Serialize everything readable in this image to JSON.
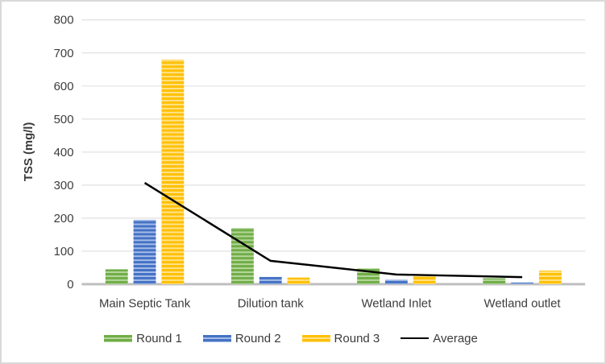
{
  "chart_data": {
    "type": "bar",
    "title": "",
    "xlabel": "",
    "ylabel": "TSS (mg/l)",
    "ylim": [
      0,
      800
    ],
    "ytick_step": 100,
    "yticks": [
      0,
      100,
      200,
      300,
      400,
      500,
      600,
      700,
      800
    ],
    "grid": true,
    "legend_position": "bottom",
    "categories": [
      "Main Septic Tank",
      "Dilution tank",
      "Wetland Inlet",
      "Wetland outlet"
    ],
    "series": [
      {
        "name": "Round 1",
        "color": "#70AD47",
        "color_light": "#B5D69C",
        "pattern": "horizontal-stripes",
        "values": [
          45,
          170,
          48,
          18
        ]
      },
      {
        "name": "Round 2",
        "color": "#4472C4",
        "color_light": "#A5BCE8",
        "pattern": "horizontal-stripes",
        "values": [
          195,
          22,
          14,
          5
        ]
      },
      {
        "name": "Round 3",
        "color": "#FFC000",
        "color_light": "#FFE28C",
        "pattern": "horizontal-stripes",
        "values": [
          680,
          20,
          26,
          41
        ]
      }
    ],
    "line_series": {
      "name": "Average",
      "color": "#000000",
      "values": [
        306.7,
        70.7,
        29.3,
        21.3
      ]
    }
  },
  "colors": {
    "gridline": "#D9D9D9",
    "axis_line": "#BFBFBF",
    "text": "#3B3B3B",
    "background": "#FFFFFF",
    "border": "#D9D9D9"
  }
}
